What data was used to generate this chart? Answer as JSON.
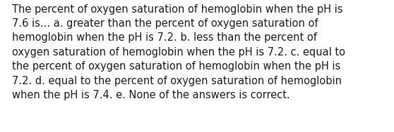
{
  "wrapped_text": "The percent of oxygen saturation of hemoglobin when the pH is\n7.6 is... a. greater than the percent of oxygen saturation of\nhemoglobin when the pH is 7.2. b. less than the percent of\noxygen saturation of hemoglobin when the pH is 7.2. c. equal to\nthe percent of oxygen saturation of hemoglobin when the pH is\n7.2. d. equal to the percent of oxygen saturation of hemoglobin\nwhen the pH is 7.4. e. None of the answers is correct.",
  "background_color": "#ffffff",
  "text_color": "#1a1a1a",
  "font_size": 10.5,
  "fig_width": 5.58,
  "fig_height": 1.88,
  "dpi": 100,
  "linespacing": 1.45
}
